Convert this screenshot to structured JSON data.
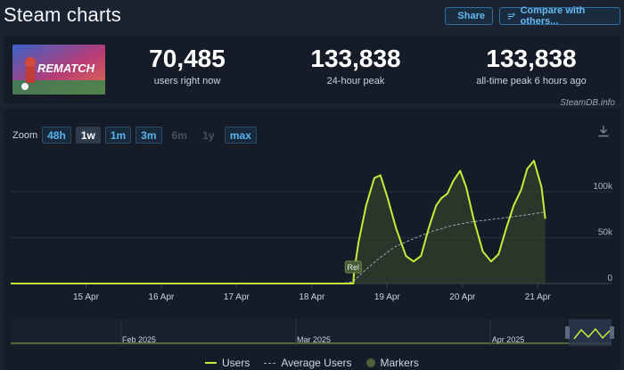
{
  "header": {
    "title": "Steam charts",
    "share_label": "Share",
    "compare_label": "Compare with others..."
  },
  "stats": {
    "game_logo_text": "REMATCH",
    "current": {
      "value": "70,485",
      "label": "users right now"
    },
    "peak24": {
      "value": "133,838",
      "label": "24-hour peak"
    },
    "alltime": {
      "value": "133,838",
      "label": "all-time peak 6 hours ago"
    }
  },
  "chart": {
    "credit": "SteamDB.info",
    "zoom_label": "Zoom",
    "zoom_options": [
      {
        "label": "48h",
        "state": "enabled"
      },
      {
        "label": "1w",
        "state": "active"
      },
      {
        "label": "1m",
        "state": "enabled"
      },
      {
        "label": "3m",
        "state": "enabled"
      },
      {
        "label": "6m",
        "state": "disabled"
      },
      {
        "label": "1y",
        "state": "disabled"
      },
      {
        "label": "max",
        "state": "enabled"
      }
    ],
    "legend": {
      "users": "Users",
      "average": "Average Users",
      "markers": "Markers"
    },
    "marker_label": "Rel",
    "navigator_labels": [
      "Feb 2025",
      "Mar 2025",
      "Apr 2025"
    ],
    "colors": {
      "users": "#c7ec3a",
      "average": "#9aa7b6",
      "fill": "#3a4c2c"
    }
  },
  "chart_data": {
    "type": "line",
    "xlabel": "",
    "ylabel": "",
    "x_ticks": [
      "15 Apr",
      "16 Apr",
      "17 Apr",
      "18 Apr",
      "19 Apr",
      "20 Apr",
      "21 Apr"
    ],
    "y_ticks": [
      "0",
      "50k",
      "100k"
    ],
    "ylim": [
      0,
      140000
    ],
    "xlim": [
      14.0,
      21.98
    ],
    "series": [
      {
        "name": "Users",
        "points": [
          [
            14.0,
            0
          ],
          [
            14.45,
            0
          ],
          [
            18.55,
            0
          ],
          [
            18.56,
            12000
          ],
          [
            18.62,
            45000
          ],
          [
            18.72,
            85000
          ],
          [
            18.83,
            115000
          ],
          [
            18.91,
            118000
          ],
          [
            19.0,
            95000
          ],
          [
            19.12,
            60000
          ],
          [
            19.25,
            30000
          ],
          [
            19.35,
            24000
          ],
          [
            19.45,
            30000
          ],
          [
            19.55,
            60000
          ],
          [
            19.65,
            85000
          ],
          [
            19.72,
            93000
          ],
          [
            19.8,
            98000
          ],
          [
            19.88,
            112000
          ],
          [
            19.97,
            123000
          ],
          [
            20.05,
            105000
          ],
          [
            20.15,
            70000
          ],
          [
            20.27,
            35000
          ],
          [
            20.38,
            24000
          ],
          [
            20.48,
            32000
          ],
          [
            20.58,
            60000
          ],
          [
            20.68,
            85000
          ],
          [
            20.78,
            102000
          ],
          [
            20.86,
            125000
          ],
          [
            20.95,
            133838
          ],
          [
            21.05,
            105000
          ],
          [
            21.1,
            70485
          ]
        ]
      },
      {
        "name": "Average Users",
        "points": [
          [
            14.0,
            0
          ],
          [
            18.4,
            0
          ],
          [
            18.55,
            2000
          ],
          [
            18.7,
            14000
          ],
          [
            18.9,
            28000
          ],
          [
            19.1,
            40000
          ],
          [
            19.35,
            49000
          ],
          [
            19.6,
            57000
          ],
          [
            19.85,
            63000
          ],
          [
            20.1,
            67000
          ],
          [
            20.35,
            69500
          ],
          [
            20.6,
            72000
          ],
          [
            20.85,
            75000
          ],
          [
            21.1,
            78000
          ]
        ]
      }
    ]
  }
}
